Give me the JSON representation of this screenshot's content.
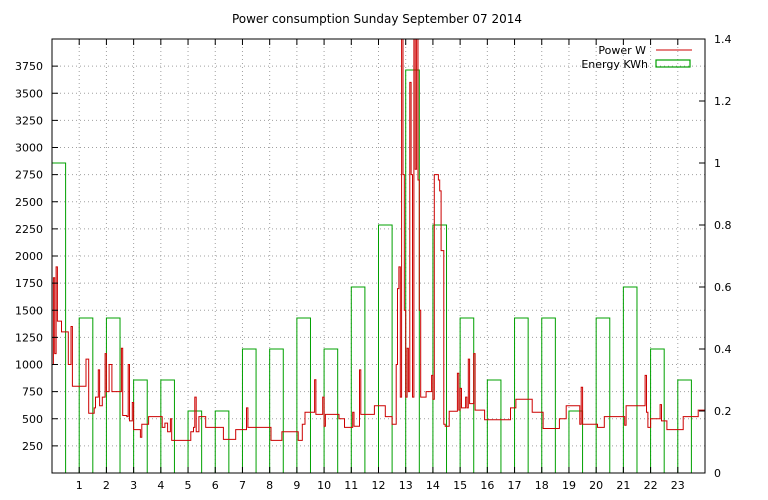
{
  "chart_data": {
    "type": "bar+line",
    "title": "Power consumption Sunday September 07 2014",
    "xlabel": "",
    "ylabel": "",
    "y2label": "",
    "xlim": [
      0,
      24
    ],
    "ylim": [
      0,
      4000
    ],
    "y2lim": [
      0,
      1.4
    ],
    "grid": true,
    "legend_position": "top-right",
    "x_ticks": [
      1,
      2,
      3,
      4,
      5,
      6,
      7,
      8,
      9,
      10,
      11,
      12,
      13,
      14,
      15,
      16,
      17,
      18,
      19,
      20,
      21,
      22,
      23
    ],
    "y_ticks": [
      250,
      500,
      750,
      1000,
      1250,
      1500,
      1750,
      2000,
      2250,
      2500,
      2750,
      3000,
      3250,
      3500,
      3750
    ],
    "y2_ticks": [
      "0",
      "0.2",
      "0.4",
      "0.6",
      "0.8",
      "1",
      "1.2",
      "1.4"
    ],
    "series": [
      {
        "name": "Power W",
        "kind": "line",
        "axis": "y",
        "color": "#cc0000",
        "points": [
          [
            0.0,
            1000
          ],
          [
            0.05,
            1800
          ],
          [
            0.1,
            1100
          ],
          [
            0.15,
            1900
          ],
          [
            0.2,
            1400
          ],
          [
            0.3,
            1400
          ],
          [
            0.35,
            1300
          ],
          [
            0.55,
            1300
          ],
          [
            0.6,
            1000
          ],
          [
            0.7,
            1350
          ],
          [
            0.75,
            800
          ],
          [
            1.2,
            800
          ],
          [
            1.25,
            1050
          ],
          [
            1.35,
            550
          ],
          [
            1.55,
            600
          ],
          [
            1.6,
            700
          ],
          [
            1.7,
            950
          ],
          [
            1.75,
            620
          ],
          [
            1.85,
            700
          ],
          [
            1.95,
            1100
          ],
          [
            2.0,
            750
          ],
          [
            2.1,
            1000
          ],
          [
            2.2,
            750
          ],
          [
            2.5,
            750
          ],
          [
            2.55,
            1150
          ],
          [
            2.6,
            530
          ],
          [
            2.75,
            520
          ],
          [
            2.8,
            1000
          ],
          [
            2.85,
            480
          ],
          [
            2.95,
            650
          ],
          [
            3.0,
            400
          ],
          [
            3.1,
            400
          ],
          [
            3.25,
            330
          ],
          [
            3.3,
            450
          ],
          [
            3.5,
            450
          ],
          [
            3.55,
            520
          ],
          [
            4.0,
            520
          ],
          [
            4.05,
            420
          ],
          [
            4.15,
            460
          ],
          [
            4.25,
            380
          ],
          [
            4.35,
            500
          ],
          [
            4.4,
            300
          ],
          [
            5.0,
            300
          ],
          [
            5.1,
            380
          ],
          [
            5.2,
            420
          ],
          [
            5.25,
            700
          ],
          [
            5.3,
            380
          ],
          [
            5.4,
            520
          ],
          [
            5.6,
            520
          ],
          [
            5.65,
            420
          ],
          [
            6.25,
            420
          ],
          [
            6.3,
            310
          ],
          [
            6.7,
            310
          ],
          [
            6.75,
            400
          ],
          [
            7.1,
            400
          ],
          [
            7.15,
            600
          ],
          [
            7.2,
            420
          ],
          [
            8.0,
            420
          ],
          [
            8.05,
            300
          ],
          [
            8.4,
            300
          ],
          [
            8.45,
            380
          ],
          [
            9.0,
            380
          ],
          [
            9.05,
            300
          ],
          [
            9.15,
            300
          ],
          [
            9.2,
            450
          ],
          [
            9.3,
            560
          ],
          [
            9.6,
            560
          ],
          [
            9.65,
            860
          ],
          [
            9.7,
            540
          ],
          [
            9.9,
            540
          ],
          [
            9.95,
            700
          ],
          [
            10.0,
            430
          ],
          [
            10.05,
            540
          ],
          [
            10.5,
            540
          ],
          [
            10.55,
            500
          ],
          [
            10.7,
            500
          ],
          [
            10.75,
            420
          ],
          [
            11.0,
            420
          ],
          [
            11.05,
            560
          ],
          [
            11.1,
            430
          ],
          [
            11.25,
            430
          ],
          [
            11.3,
            950
          ],
          [
            11.35,
            540
          ],
          [
            11.8,
            540
          ],
          [
            11.85,
            620
          ],
          [
            12.2,
            620
          ],
          [
            12.25,
            520
          ],
          [
            12.45,
            520
          ],
          [
            12.5,
            450
          ],
          [
            12.6,
            450
          ],
          [
            12.65,
            1000
          ],
          [
            12.7,
            1700
          ],
          [
            12.75,
            1900
          ],
          [
            12.8,
            700
          ],
          [
            12.85,
            4000
          ],
          [
            12.9,
            2750
          ],
          [
            12.95,
            1500
          ],
          [
            13.0,
            700
          ],
          [
            13.05,
            1150
          ],
          [
            13.1,
            750
          ],
          [
            13.15,
            3600
          ],
          [
            13.2,
            2750
          ],
          [
            13.25,
            700
          ],
          [
            13.3,
            4000
          ],
          [
            13.35,
            2800
          ],
          [
            13.4,
            4000
          ],
          [
            13.45,
            2700
          ],
          [
            13.5,
            1500
          ],
          [
            13.55,
            700
          ],
          [
            13.7,
            700
          ],
          [
            13.75,
            750
          ],
          [
            13.9,
            750
          ],
          [
            13.95,
            900
          ],
          [
            14.0,
            680
          ],
          [
            14.05,
            2750
          ],
          [
            14.15,
            2750
          ],
          [
            14.2,
            2700
          ],
          [
            14.25,
            2600
          ],
          [
            14.3,
            2050
          ],
          [
            14.4,
            450
          ],
          [
            14.45,
            430
          ],
          [
            14.55,
            430
          ],
          [
            14.6,
            570
          ],
          [
            14.85,
            570
          ],
          [
            14.9,
            920
          ],
          [
            14.95,
            580
          ],
          [
            15.0,
            780
          ],
          [
            15.05,
            600
          ],
          [
            15.2,
            700
          ],
          [
            15.25,
            600
          ],
          [
            15.3,
            1050
          ],
          [
            15.35,
            640
          ],
          [
            15.45,
            640
          ],
          [
            15.5,
            1100
          ],
          [
            15.55,
            580
          ],
          [
            15.85,
            580
          ],
          [
            15.9,
            490
          ],
          [
            16.8,
            490
          ],
          [
            16.85,
            600
          ],
          [
            17.0,
            600
          ],
          [
            17.05,
            680
          ],
          [
            17.6,
            680
          ],
          [
            17.65,
            560
          ],
          [
            18.0,
            560
          ],
          [
            18.05,
            410
          ],
          [
            18.6,
            410
          ],
          [
            18.65,
            500
          ],
          [
            18.85,
            500
          ],
          [
            18.9,
            620
          ],
          [
            19.35,
            620
          ],
          [
            19.4,
            450
          ],
          [
            19.45,
            790
          ],
          [
            19.5,
            450
          ],
          [
            20.0,
            450
          ],
          [
            20.05,
            420
          ],
          [
            20.25,
            420
          ],
          [
            20.3,
            520
          ],
          [
            21.0,
            520
          ],
          [
            21.05,
            440
          ],
          [
            21.1,
            620
          ],
          [
            21.75,
            620
          ],
          [
            21.8,
            900
          ],
          [
            21.85,
            560
          ],
          [
            21.9,
            420
          ],
          [
            22.0,
            500
          ],
          [
            22.3,
            500
          ],
          [
            22.35,
            630
          ],
          [
            22.4,
            480
          ],
          [
            22.55,
            480
          ],
          [
            22.6,
            400
          ],
          [
            23.15,
            400
          ],
          [
            23.2,
            520
          ],
          [
            23.7,
            520
          ],
          [
            23.75,
            580
          ],
          [
            24.0,
            580
          ]
        ]
      },
      {
        "name": "Energy KWh",
        "kind": "bar",
        "axis": "y2",
        "color": "#00a000",
        "bar_width_hours": 0.5,
        "bars": [
          [
            0.0,
            1.0
          ],
          [
            1.0,
            0.5
          ],
          [
            2.0,
            0.5
          ],
          [
            3.0,
            0.3
          ],
          [
            4.0,
            0.3
          ],
          [
            5.0,
            0.2
          ],
          [
            6.0,
            0.2
          ],
          [
            7.0,
            0.4
          ],
          [
            8.0,
            0.4
          ],
          [
            9.0,
            0.5
          ],
          [
            10.0,
            0.4
          ],
          [
            11.0,
            0.6
          ],
          [
            12.0,
            0.8
          ],
          [
            13.0,
            1.3
          ],
          [
            14.0,
            0.8
          ],
          [
            15.0,
            0.5
          ],
          [
            16.0,
            0.3
          ],
          [
            17.0,
            0.5
          ],
          [
            18.0,
            0.5
          ],
          [
            19.0,
            0.2
          ],
          [
            20.0,
            0.5
          ],
          [
            21.0,
            0.6
          ],
          [
            22.0,
            0.4
          ],
          [
            23.0,
            0.3
          ]
        ]
      }
    ]
  }
}
